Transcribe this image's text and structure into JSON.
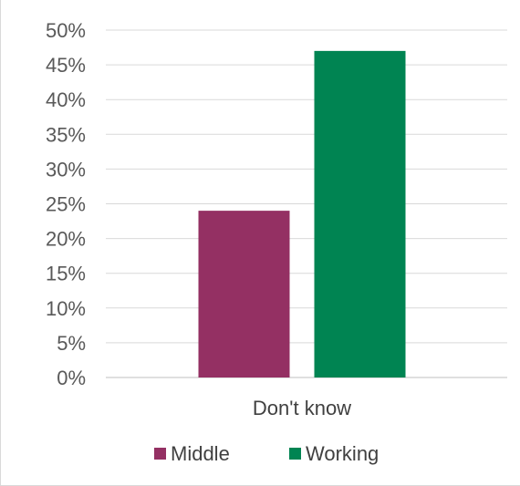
{
  "chart_data": {
    "type": "bar",
    "categories": [
      "Don't know"
    ],
    "series": [
      {
        "name": "Middle",
        "values": [
          0.24
        ],
        "color": "#943063"
      },
      {
        "name": "Working",
        "values": [
          0.47
        ],
        "color": "#008452"
      }
    ],
    "yticks": [
      "0%",
      "5%",
      "10%",
      "15%",
      "20%",
      "25%",
      "30%",
      "35%",
      "40%",
      "45%",
      "50%"
    ],
    "ylim": [
      0,
      0.5
    ],
    "grid": true,
    "legend": "bottom"
  }
}
